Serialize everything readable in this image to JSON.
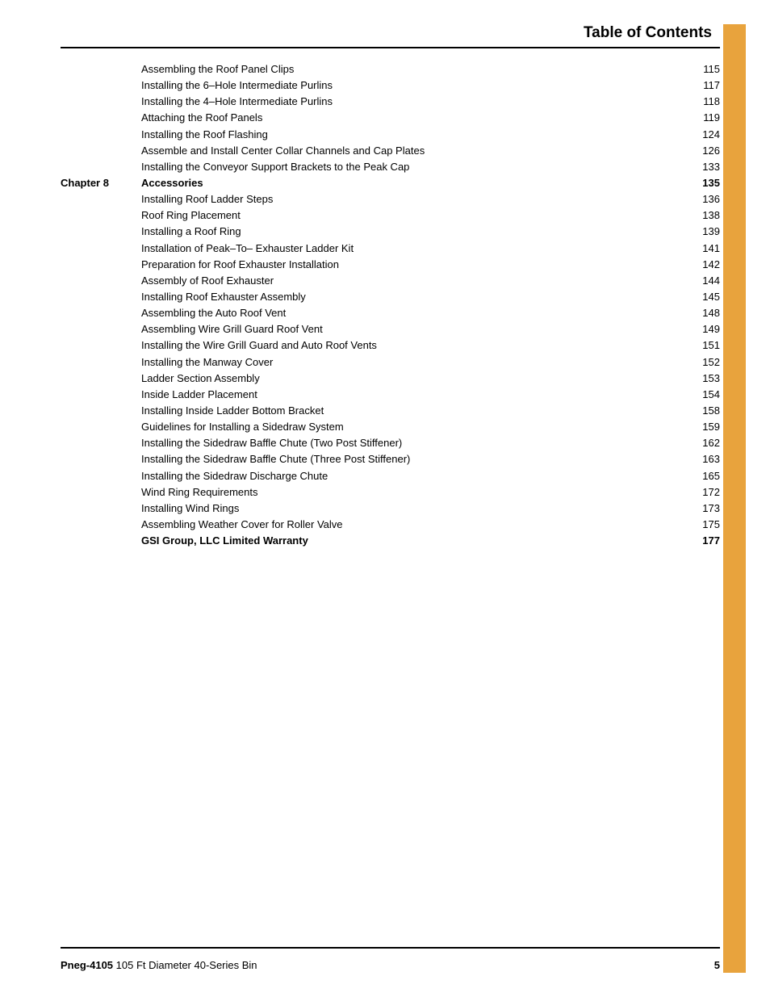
{
  "colors": {
    "sidebar": "#e8a33d",
    "text": "#000000",
    "rule": "#000000",
    "background": "#ffffff"
  },
  "typography": {
    "family": "Arial, Helvetica, sans-serif",
    "title_size_pt": 14,
    "body_size_pt": 10,
    "line_height": 1.55
  },
  "title": "Table of Contents",
  "toc": [
    {
      "chapter": "",
      "label": "Assembling the Roof Panel Clips",
      "page": "115",
      "bold": false
    },
    {
      "chapter": "",
      "label": "Installing the 6–Hole Intermediate Purlins",
      "page": "117",
      "bold": false
    },
    {
      "chapter": "",
      "label": "Installing the 4–Hole Intermediate Purlins",
      "page": "118",
      "bold": false
    },
    {
      "chapter": "",
      "label": "Attaching the Roof Panels",
      "page": "119",
      "bold": false
    },
    {
      "chapter": "",
      "label": "Installing the Roof Flashing",
      "page": "124",
      "bold": false
    },
    {
      "chapter": "",
      "label": "Assemble and Install Center Collar Channels and Cap Plates",
      "page": "126",
      "bold": false
    },
    {
      "chapter": "",
      "label": "Installing the Conveyor Support Brackets to the Peak Cap",
      "page": "133",
      "bold": false
    },
    {
      "chapter": "Chapter 8",
      "label": "Accessories",
      "page": "135",
      "bold": true
    },
    {
      "chapter": "",
      "label": "Installing Roof Ladder Steps",
      "page": "136",
      "bold": false
    },
    {
      "chapter": "",
      "label": "Roof Ring Placement",
      "page": "138",
      "bold": false
    },
    {
      "chapter": "",
      "label": "Installing a Roof Ring",
      "page": "139",
      "bold": false
    },
    {
      "chapter": "",
      "label": "Installation of Peak–To– Exhauster Ladder Kit",
      "page": "141",
      "bold": false
    },
    {
      "chapter": "",
      "label": "Preparation for Roof Exhauster Installation",
      "page": "142",
      "bold": false
    },
    {
      "chapter": "",
      "label": "Assembly of Roof Exhauster",
      "page": "144",
      "bold": false
    },
    {
      "chapter": "",
      "label": "Installing Roof Exhauster Assembly",
      "page": "145",
      "bold": false
    },
    {
      "chapter": "",
      "label": "Assembling the Auto Roof Vent",
      "page": "148",
      "bold": false
    },
    {
      "chapter": "",
      "label": "Assembling Wire Grill Guard Roof Vent",
      "page": "149",
      "bold": false
    },
    {
      "chapter": "",
      "label": "Installing the Wire Grill Guard and Auto Roof Vents",
      "page": "151",
      "bold": false
    },
    {
      "chapter": "",
      "label": "Installing the Manway Cover",
      "page": "152",
      "bold": false
    },
    {
      "chapter": "",
      "label": "Ladder Section Assembly",
      "page": "153",
      "bold": false
    },
    {
      "chapter": "",
      "label": "Inside Ladder Placement",
      "page": "154",
      "bold": false
    },
    {
      "chapter": "",
      "label": "Installing Inside Ladder Bottom Bracket",
      "page": "158",
      "bold": false
    },
    {
      "chapter": "",
      "label": "Guidelines for Installing a Sidedraw System",
      "page": "159",
      "bold": false
    },
    {
      "chapter": "",
      "label": "Installing the Sidedraw Baffle Chute (Two Post Stiffener)",
      "page": "162",
      "bold": false
    },
    {
      "chapter": "",
      "label": "Installing the Sidedraw Baffle Chute (Three Post Stiffener)",
      "page": "163",
      "bold": false
    },
    {
      "chapter": "",
      "label": "Installing the Sidedraw Discharge Chute",
      "page": "165",
      "bold": false
    },
    {
      "chapter": "",
      "label": "Wind Ring Requirements",
      "page": "172",
      "bold": false
    },
    {
      "chapter": "",
      "label": "Installing Wind Rings",
      "page": "173",
      "bold": false
    },
    {
      "chapter": "",
      "label": "Assembling Weather Cover for Roller Valve",
      "page": "175",
      "bold": false
    },
    {
      "chapter": "",
      "label": "GSI Group, LLC Limited Warranty",
      "page": "177",
      "bold": true
    }
  ],
  "footer": {
    "doc_id": "Pneg-4105",
    "doc_title": "105 Ft Diameter 40-Series Bin",
    "page_number": "5"
  }
}
